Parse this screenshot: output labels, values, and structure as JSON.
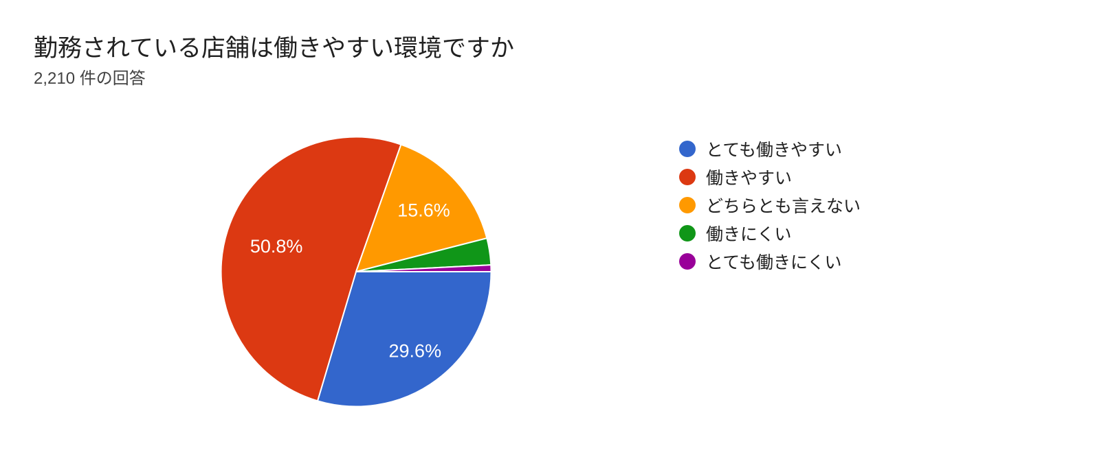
{
  "page": {
    "background_color": "#ffffff"
  },
  "header": {
    "title": "勤務されている店舗は働きやすい環境ですか",
    "response_count": "2,210 件の回答"
  },
  "chart_data": {
    "type": "pie",
    "title": "勤務されている店舗は働きやすい環境ですか",
    "subtitle": "2,210 件の回答",
    "total_responses": 2210,
    "legend_position": "right",
    "start_angle": "3-oclock",
    "direction": "clockwise",
    "slice_border_color": "#ffffff",
    "slices": [
      {
        "label": "とても働きやすい",
        "value_pct": 29.6,
        "display_label": "29.6%",
        "color": "#3366CC",
        "label_radius": 0.73
      },
      {
        "label": "働きやすい",
        "value_pct": 50.8,
        "display_label": "50.8%",
        "color": "#DC3912",
        "label_radius": 0.62
      },
      {
        "label": "どちらとも言えない",
        "value_pct": 15.6,
        "display_label": "15.6%",
        "color": "#FF9900",
        "label_radius": 0.68
      },
      {
        "label": "働きにくい",
        "value_pct": 3.2,
        "display_label": "",
        "color": "#109618",
        "label_radius": 0.85,
        "estimated": true
      },
      {
        "label": "とても働きにくい",
        "value_pct": 0.8,
        "display_label": "",
        "color": "#990099",
        "label_radius": 0.85,
        "estimated": true
      }
    ]
  }
}
